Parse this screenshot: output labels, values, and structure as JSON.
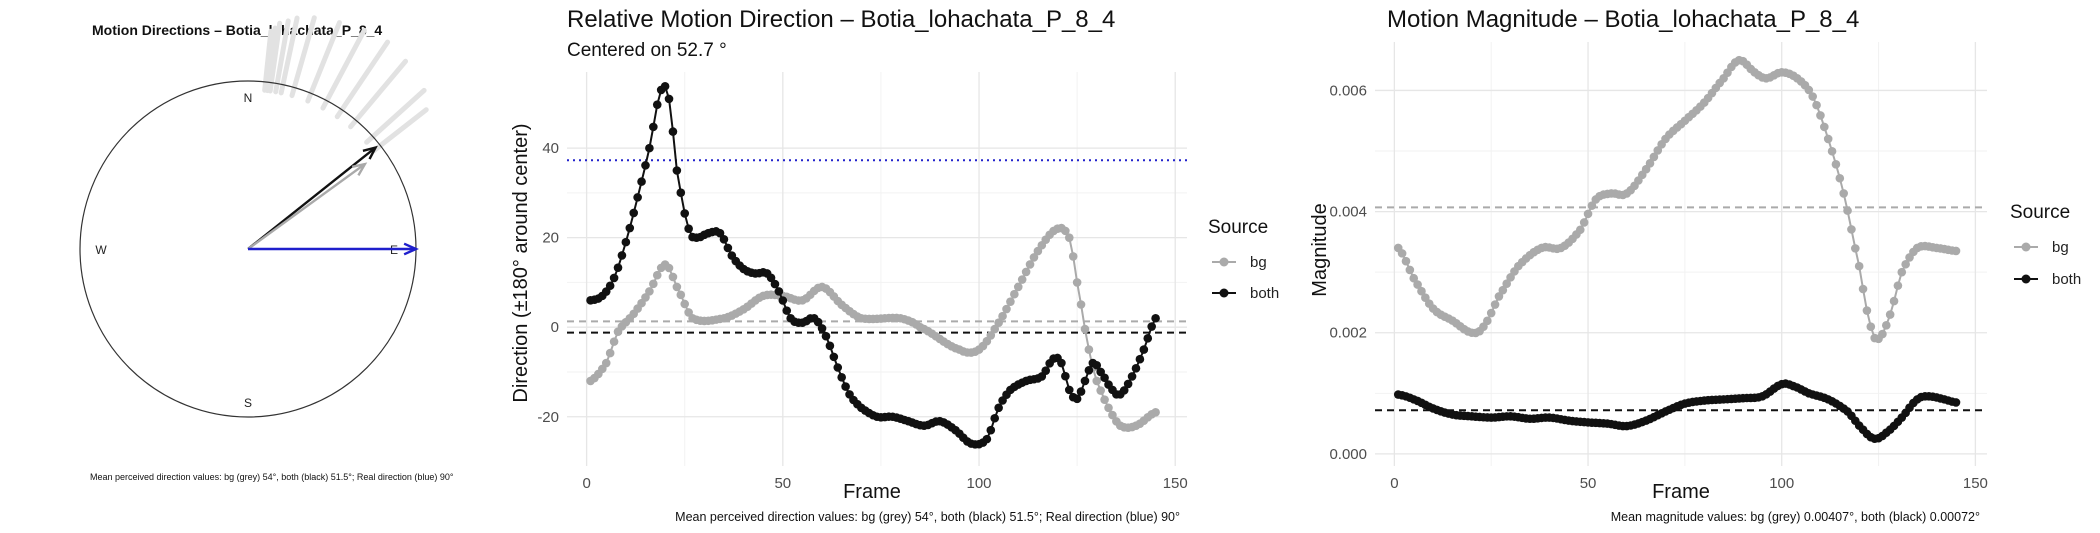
{
  "chart_data": [
    {
      "type": "polar-arrows",
      "title": "Motion Directions – Botia_lohachata_P_8_4",
      "compass_labels": {
        "north": "N",
        "south": "S",
        "east": "E",
        "west": "W"
      },
      "arrows": [
        {
          "name": "mean-both",
          "angle_deg": 51.5,
          "color": "#111111"
        },
        {
          "name": "mean-bg",
          "angle_deg": 54,
          "color": "#aaaaaa"
        },
        {
          "name": "real-direction",
          "angle_deg": 90,
          "color": "#1f1fcc"
        }
      ],
      "sample_angles_deg": [
        52,
        48,
        40,
        34,
        28,
        22,
        16,
        12,
        10,
        8,
        7,
        6
      ],
      "caption": "Mean perceived direction values: bg (grey) 54°, both (black) 51.5°; Real direction (blue) 90°"
    },
    {
      "type": "line",
      "title": "Relative Motion Direction – Botia_lohachata_P_8_4",
      "subtitle": "Centered on  52.7 °",
      "xlabel": "Frame",
      "ylabel": "Direction (±180° around center)",
      "xlim": [
        -5,
        153
      ],
      "ylim": [
        -31,
        57
      ],
      "xticks": [
        0,
        50,
        100,
        150
      ],
      "yticks": [
        -20,
        0,
        20,
        40
      ],
      "grid": true,
      "legend": {
        "title": "Source",
        "position": "right"
      },
      "hlines": [
        {
          "y": 37.3,
          "color": "#2222cc",
          "style": "dotted"
        },
        {
          "y": 1.3,
          "color": "#aaaaaa",
          "style": "dashed"
        },
        {
          "y": -1.2,
          "color": "#111111",
          "style": "dashed"
        }
      ],
      "series": [
        {
          "name": "bg",
          "color": "#aaaaaa",
          "keypoints": [
            [
              1,
              -12
            ],
            [
              5,
              -8
            ],
            [
              8,
              -1
            ],
            [
              12,
              3
            ],
            [
              16,
              8
            ],
            [
              20,
              14
            ],
            [
              23,
              9
            ],
            [
              27,
              2
            ],
            [
              35,
              2
            ],
            [
              40,
              4
            ],
            [
              45,
              7
            ],
            [
              50,
              7
            ],
            [
              55,
              6
            ],
            [
              60,
              9
            ],
            [
              65,
              5
            ],
            [
              70,
              2
            ],
            [
              80,
              2
            ],
            [
              85,
              0
            ],
            [
              95,
              -5
            ],
            [
              100,
              -5
            ],
            [
              105,
              1
            ],
            [
              110,
              9
            ],
            [
              115,
              17
            ],
            [
              120,
              22
            ],
            [
              123,
              20
            ],
            [
              125,
              10
            ],
            [
              128,
              -5
            ],
            [
              130,
              -12
            ],
            [
              133,
              -18
            ],
            [
              136,
              -22
            ],
            [
              140,
              -22
            ],
            [
              145,
              -19
            ]
          ]
        },
        {
          "name": "both",
          "color": "#111111",
          "keypoints": [
            [
              1,
              6
            ],
            [
              4,
              7
            ],
            [
              7,
              11
            ],
            [
              10,
              19
            ],
            [
              13,
              29
            ],
            [
              16,
              40
            ],
            [
              19,
              53
            ],
            [
              21,
              51
            ],
            [
              23,
              35
            ],
            [
              26,
              22
            ],
            [
              28,
              20
            ],
            [
              31,
              21
            ],
            [
              34,
              21
            ],
            [
              37,
              16
            ],
            [
              40,
              13
            ],
            [
              43,
              12
            ],
            [
              46,
              12
            ],
            [
              49,
              8
            ],
            [
              52,
              2
            ],
            [
              55,
              1
            ],
            [
              58,
              2
            ],
            [
              61,
              -2
            ],
            [
              64,
              -9
            ],
            [
              67,
              -15
            ],
            [
              70,
              -18
            ],
            [
              74,
              -20
            ],
            [
              78,
              -20
            ],
            [
              82,
              -21
            ],
            [
              86,
              -22
            ],
            [
              90,
              -21
            ],
            [
              94,
              -23
            ],
            [
              98,
              -26
            ],
            [
              102,
              -25
            ],
            [
              105,
              -18
            ],
            [
              108,
              -14
            ],
            [
              112,
              -12
            ],
            [
              116,
              -11
            ],
            [
              119,
              -7
            ],
            [
              121,
              -8
            ],
            [
              123,
              -14
            ],
            [
              125,
              -16
            ],
            [
              127,
              -12
            ],
            [
              129,
              -8
            ],
            [
              131,
              -10
            ],
            [
              134,
              -14
            ],
            [
              136,
              -15
            ],
            [
              139,
              -11
            ],
            [
              142,
              -5
            ],
            [
              145,
              2
            ]
          ]
        }
      ],
      "caption": "Mean perceived direction values: bg (grey) 54°, both (black) 51.5°; Real direction (blue) 90°"
    },
    {
      "type": "line",
      "title": "Motion Magnitude – Botia_lohachata_P_8_4",
      "xlabel": "Frame",
      "ylabel": "Magnitude",
      "xlim": [
        -5,
        153
      ],
      "ylim": [
        -0.0002,
        0.0068
      ],
      "xticks": [
        0,
        50,
        100,
        150
      ],
      "yticks": [
        0.0,
        0.002,
        0.004,
        0.006
      ],
      "ytick_labels": [
        "0.000",
        "0.002",
        "0.004",
        "0.006"
      ],
      "grid": true,
      "legend": {
        "title": "Source",
        "position": "right"
      },
      "hlines": [
        {
          "y": 0.00407,
          "color": "#aaaaaa",
          "style": "dashed"
        },
        {
          "y": 0.00072,
          "color": "#111111",
          "style": "dashed"
        }
      ],
      "series": [
        {
          "name": "bg",
          "color": "#aaaaaa",
          "keypoints": [
            [
              1,
              0.0034
            ],
            [
              5,
              0.0029
            ],
            [
              10,
              0.0024
            ],
            [
              15,
              0.0022
            ],
            [
              20,
              0.002
            ],
            [
              23,
              0.0021
            ],
            [
              27,
              0.0026
            ],
            [
              32,
              0.0031
            ],
            [
              38,
              0.0034
            ],
            [
              43,
              0.0034
            ],
            [
              48,
              0.0037
            ],
            [
              52,
              0.0042
            ],
            [
              56,
              0.0043
            ],
            [
              60,
              0.0043
            ],
            [
              65,
              0.0047
            ],
            [
              70,
              0.0052
            ],
            [
              75,
              0.0055
            ],
            [
              80,
              0.0058
            ],
            [
              85,
              0.0062
            ],
            [
              89,
              0.0065
            ],
            [
              93,
              0.0063
            ],
            [
              96,
              0.0062
            ],
            [
              100,
              0.0063
            ],
            [
              104,
              0.0062
            ],
            [
              108,
              0.0059
            ],
            [
              112,
              0.0052
            ],
            [
              116,
              0.0043
            ],
            [
              120,
              0.0031
            ],
            [
              123,
              0.0021
            ],
            [
              125,
              0.0019
            ],
            [
              128,
              0.0023
            ],
            [
              131,
              0.003
            ],
            [
              135,
              0.0034
            ],
            [
              140,
              0.0034
            ],
            [
              145,
              0.00335
            ]
          ]
        },
        {
          "name": "both",
          "color": "#111111",
          "keypoints": [
            [
              1,
              0.00098
            ],
            [
              5,
              0.0009
            ],
            [
              10,
              0.00075
            ],
            [
              15,
              0.00065
            ],
            [
              20,
              0.00062
            ],
            [
              25,
              0.0006
            ],
            [
              30,
              0.00062
            ],
            [
              35,
              0.00058
            ],
            [
              40,
              0.0006
            ],
            [
              45,
              0.00055
            ],
            [
              50,
              0.00052
            ],
            [
              55,
              0.0005
            ],
            [
              60,
              0.00046
            ],
            [
              65,
              0.00055
            ],
            [
              70,
              0.0007
            ],
            [
              75,
              0.00083
            ],
            [
              80,
              0.00088
            ],
            [
              85,
              0.0009
            ],
            [
              90,
              0.00092
            ],
            [
              95,
              0.00095
            ],
            [
              100,
              0.00115
            ],
            [
              103,
              0.00112
            ],
            [
              107,
              0.001
            ],
            [
              112,
              0.0009
            ],
            [
              117,
              0.0007
            ],
            [
              121,
              0.0004
            ],
            [
              124,
              0.00025
            ],
            [
              127,
              0.00035
            ],
            [
              131,
              0.0006
            ],
            [
              135,
              0.0009
            ],
            [
              138,
              0.00095
            ],
            [
              142,
              0.0009
            ],
            [
              145,
              0.00085
            ]
          ]
        }
      ],
      "caption": "Mean magnitude values: bg (grey) 0.00407°, both (black) 0.00072°"
    }
  ]
}
